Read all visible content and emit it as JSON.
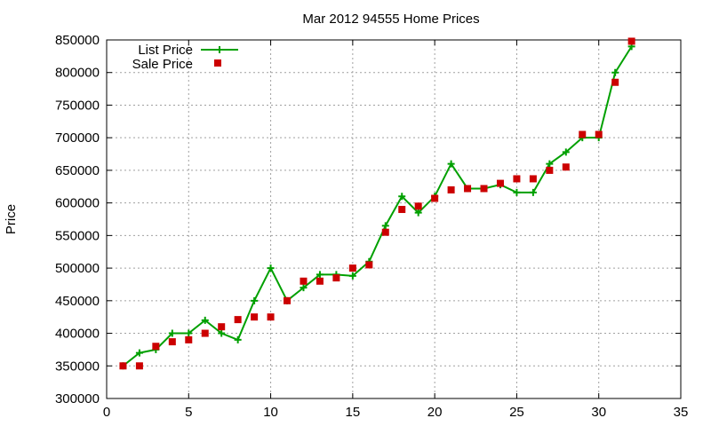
{
  "chart_data": {
    "type": "line",
    "title": "Mar 2012 94555 Home Prices",
    "xlabel": "",
    "ylabel": "Price",
    "xlim": [
      0,
      35
    ],
    "ylim": [
      300000,
      850000
    ],
    "xticks": [
      0,
      5,
      10,
      15,
      20,
      25,
      30,
      35
    ],
    "yticks": [
      300000,
      350000,
      400000,
      450000,
      500000,
      550000,
      600000,
      650000,
      700000,
      750000,
      800000,
      850000
    ],
    "grid": true,
    "legend_position": "top-left",
    "x": [
      1,
      2,
      3,
      4,
      5,
      6,
      7,
      8,
      9,
      10,
      11,
      12,
      13,
      14,
      15,
      16,
      17,
      18,
      19,
      20,
      21,
      22,
      23,
      24,
      25,
      26,
      27,
      28,
      29,
      30,
      31,
      32
    ],
    "series": [
      {
        "name": "List Price",
        "style": "line-with-plus-markers",
        "color": "#00a000",
        "values": [
          350000,
          370000,
          375000,
          400000,
          400000,
          420000,
          400000,
          390000,
          450000,
          500000,
          450000,
          470000,
          490000,
          490000,
          488000,
          510000,
          565000,
          610000,
          585000,
          610000,
          660000,
          622000,
          622000,
          628000,
          616000,
          616000,
          660000,
          678000,
          700000,
          700000,
          800000,
          840000
        ]
      },
      {
        "name": "Sale Price",
        "style": "square-markers",
        "color": "#cc0000",
        "values": [
          350000,
          350000,
          380000,
          387000,
          390000,
          400000,
          410000,
          421000,
          425000,
          425000,
          450000,
          480000,
          480000,
          485000,
          500000,
          505000,
          555000,
          590000,
          595000,
          607000,
          620000,
          622000,
          622000,
          630000,
          637000,
          637000,
          650000,
          655000,
          705000,
          705000,
          785000,
          848000
        ]
      }
    ]
  }
}
